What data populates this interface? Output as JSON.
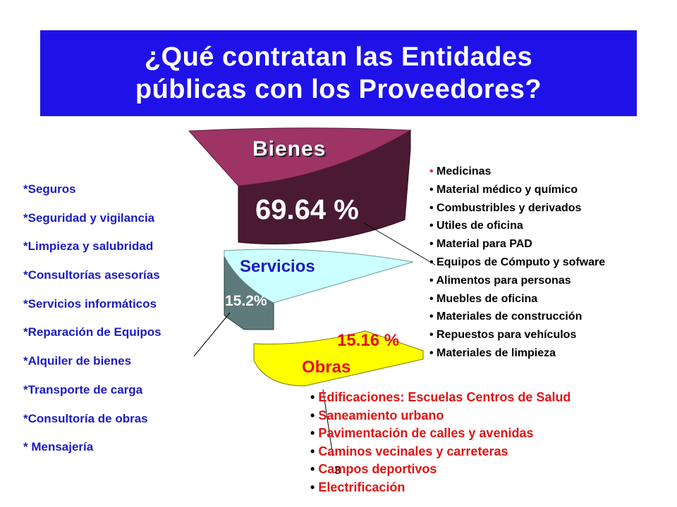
{
  "title": "¿Qué contratan las Entidades\npúblicas con los Proveedores?",
  "colors": {
    "title_bg": "#1f12e8",
    "bienes_top": "#9e3366",
    "bienes_side": "#4a1a33",
    "servicios_top": "#ccffff",
    "servicios_side": "#5f7a7a",
    "obras_top": "#ffff00",
    "services_text": "#1b1bbf",
    "works_text": "#e01414",
    "bienes_pct_color": "#ffffff",
    "obras_pct_color": "#e01414"
  },
  "segments": {
    "bienes": {
      "label": "Bienes",
      "percent_label": "69.64 %"
    },
    "servicios": {
      "label": "Servicios",
      "percent_label": "15.2%"
    },
    "obras": {
      "label": "Obras",
      "percent_label": "15.16 %"
    }
  },
  "services_list": [
    "*Seguros",
    "*Seguridad y vigilancia",
    "*Limpieza y salubridad",
    "*Consultorías asesorías",
    "*Servicios informáticos",
    "*Reparación de Equipos",
    "*Alquiler de bienes",
    "*Transporte de carga",
    "*Consultoría de obras",
    "* Mensajería"
  ],
  "goods_list": [
    "Medicinas",
    "Material médico y químico",
    "Combustribles y derivados",
    "Utiles de oficina",
    "Material para PAD",
    "Equipos de Cómputo y sofware",
    "Alimentos para personas",
    "Muebles de oficina",
    "Materiales de construcción",
    "Repuestos para vehículos",
    "Materiales de limpieza"
  ],
  "works_list": [
    "Edificaciones: Escuelas Centros de Salud",
    "Saneamiento urbano",
    "Pavimentación de calles y avenidas",
    "Caminos vecinales y carreteras",
    "Campos deportivos",
    "Electrificación"
  ],
  "page_number": "3",
  "bullet": "•"
}
